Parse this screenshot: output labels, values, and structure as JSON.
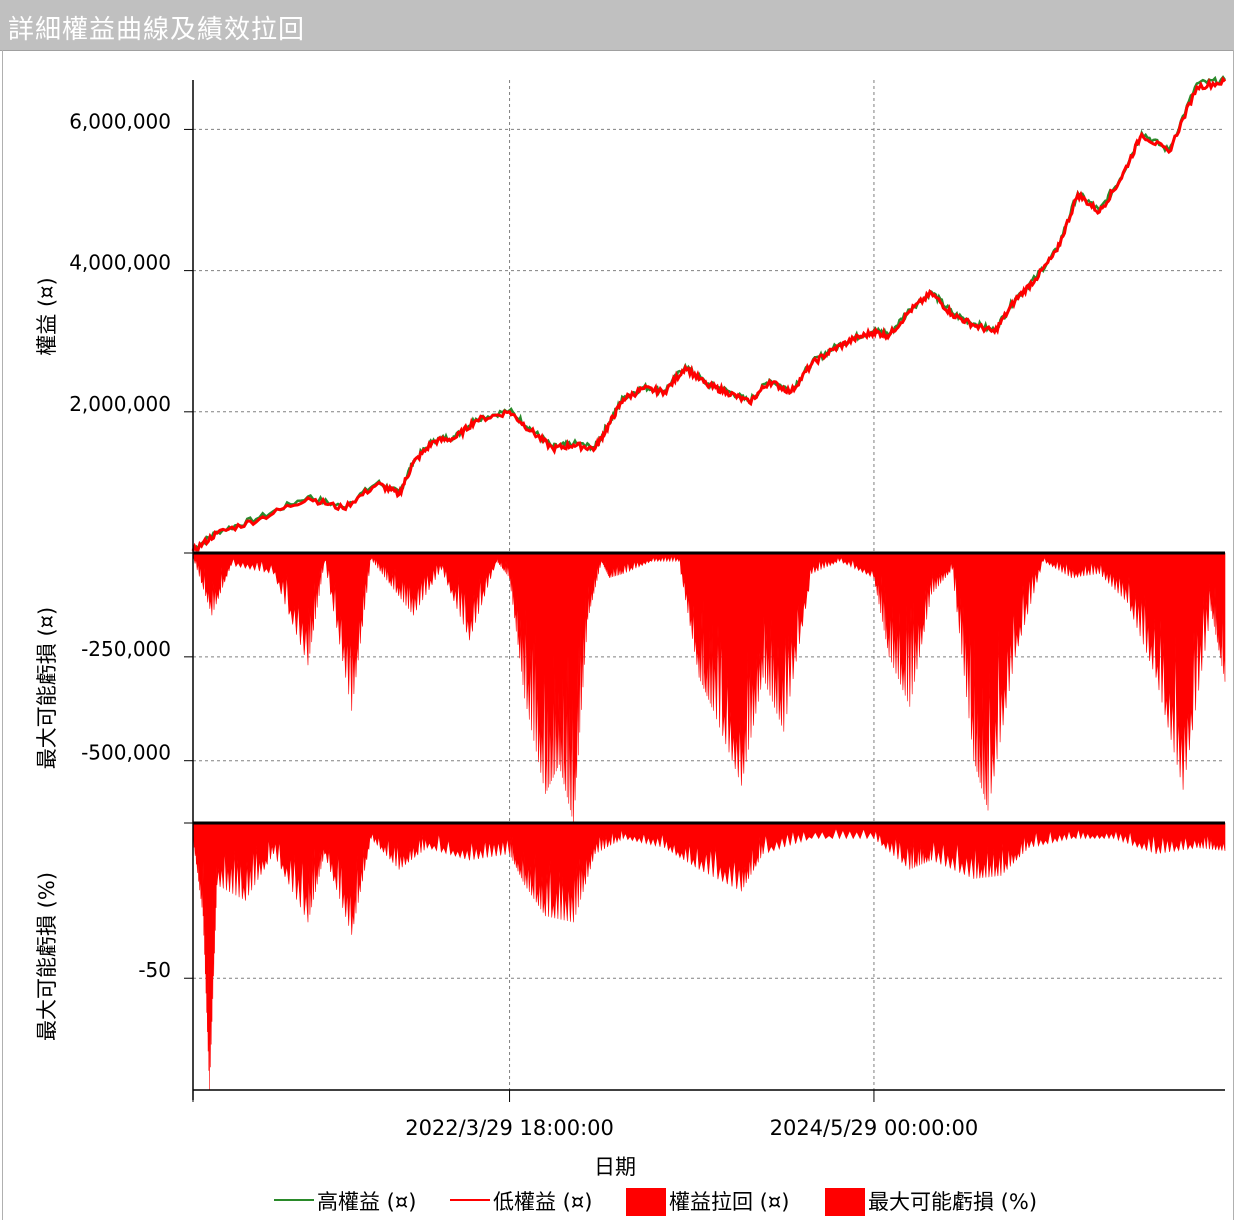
{
  "window": {
    "title": "詳細權益曲線及績效拉回"
  },
  "colors": {
    "high_line": "#2a8a2a",
    "low_line": "#ff0000",
    "fill": "#ff0000",
    "grid": "#808080",
    "title_bg": "#c0c0c0"
  },
  "chart_data": {
    "type": "line",
    "xlabel": "日期",
    "x_ticks": [
      "2022/3/29 18:00:00",
      "2024/5/29 00:00:00"
    ],
    "x_range": [
      "2020-05-10",
      "2026-07-01"
    ],
    "x_tick_dates": [
      "2022-03-29",
      "2024-05-29"
    ],
    "panels": [
      {
        "name": "equity",
        "ylabel": "權益 (¤)",
        "ylim": [
          0,
          6700000
        ],
        "y_ticks": [
          2000000,
          4000000,
          6000000
        ],
        "y_tick_labels": [
          "2,000,000",
          "4,000,000",
          "6,000,000"
        ],
        "series": [
          {
            "name": "高權益 (¤)",
            "style": "line",
            "color": "#2a8a2a"
          },
          {
            "name": "低權益 (¤)",
            "style": "line",
            "color": "#ff0000"
          }
        ],
        "x": [
          "2020-05-10",
          "2020-07-01",
          "2020-10-01",
          "2021-01-15",
          "2021-04-01",
          "2021-06-15",
          "2021-08-01",
          "2021-09-01",
          "2021-10-15",
          "2021-12-01",
          "2022-01-15",
          "2022-03-29",
          "2022-05-15",
          "2022-07-01",
          "2022-08-15",
          "2022-10-01",
          "2022-11-01",
          "2022-12-01",
          "2023-01-15",
          "2023-03-01",
          "2023-04-15",
          "2023-06-01",
          "2023-07-15",
          "2023-09-01",
          "2023-10-15",
          "2023-12-01",
          "2024-01-15",
          "2024-03-01",
          "2024-04-15",
          "2024-05-29",
          "2024-07-01",
          "2024-08-15",
          "2024-10-01",
          "2024-11-15",
          "2025-01-01",
          "2025-02-15",
          "2025-04-01",
          "2025-05-15",
          "2025-07-01",
          "2025-08-15",
          "2025-10-01",
          "2025-11-15",
          "2026-01-01",
          "2026-03-01",
          "2026-05-01",
          "2026-07-01"
        ],
        "high": [
          50000,
          300000,
          500000,
          800000,
          650000,
          1000000,
          850000,
          1300000,
          1600000,
          1650000,
          1900000,
          2020000,
          1750000,
          1500000,
          1550000,
          1500000,
          1850000,
          2200000,
          2350000,
          2300000,
          2650000,
          2400000,
          2300000,
          2150000,
          2450000,
          2300000,
          2700000,
          2900000,
          3050000,
          3150000,
          3100000,
          3450000,
          3700000,
          3400000,
          3250000,
          3150000,
          3600000,
          3900000,
          4300000,
          5100000,
          4850000,
          5300000,
          5950000,
          5700000,
          6650000,
          6700000
        ],
        "low": [
          30000,
          280000,
          480000,
          780000,
          630000,
          980000,
          830000,
          1280000,
          1580000,
          1630000,
          1880000,
          2000000,
          1730000,
          1480000,
          1530000,
          1480000,
          1830000,
          2180000,
          2330000,
          2280000,
          2630000,
          2380000,
          2280000,
          2130000,
          2430000,
          2280000,
          2680000,
          2880000,
          3030000,
          3130000,
          3080000,
          3430000,
          3680000,
          3380000,
          3230000,
          3130000,
          3580000,
          3880000,
          4280000,
          5080000,
          4830000,
          5280000,
          5930000,
          5680000,
          6600000,
          6680000
        ]
      },
      {
        "name": "drawdown",
        "ylabel": "最大可能虧損 (¤)",
        "ylim": [
          -650000,
          0
        ],
        "y_ticks": [
          -250000,
          -500000
        ],
        "y_tick_labels": [
          "-250,000",
          "-500,000"
        ],
        "series": [
          {
            "name": "權益拉回 (¤)",
            "style": "area",
            "color": "#ff0000"
          }
        ],
        "x": [
          "2020-05-10",
          "2020-06-20",
          "2020-08-01",
          "2020-11-01",
          "2021-01-15",
          "2021-02-20",
          "2021-04-20",
          "2021-06-01",
          "2021-07-15",
          "2021-09-01",
          "2021-11-01",
          "2022-01-01",
          "2022-03-01",
          "2022-03-29",
          "2022-05-01",
          "2022-06-15",
          "2022-07-15",
          "2022-08-15",
          "2022-09-15",
          "2022-10-15",
          "2022-11-01",
          "2022-12-01",
          "2023-02-01",
          "2023-04-01",
          "2023-05-15",
          "2023-06-15",
          "2023-08-15",
          "2023-10-01",
          "2023-11-15",
          "2024-01-15",
          "2024-03-15",
          "2024-05-29",
          "2024-07-01",
          "2024-08-15",
          "2024-10-01",
          "2024-11-15",
          "2025-01-01",
          "2025-02-01",
          "2025-04-01",
          "2025-06-01",
          "2025-08-01",
          "2025-10-01",
          "2025-12-01",
          "2026-02-01",
          "2026-04-01",
          "2026-06-01",
          "2026-07-01"
        ],
        "values": [
          -10000,
          -150000,
          -30000,
          -50000,
          -270000,
          -20000,
          -380000,
          -15000,
          -80000,
          -150000,
          -40000,
          -210000,
          -20000,
          -60000,
          -350000,
          -580000,
          -510000,
          -650000,
          -160000,
          -20000,
          -60000,
          -50000,
          -20000,
          -20000,
          -300000,
          -380000,
          -560000,
          -300000,
          -430000,
          -50000,
          -20000,
          -60000,
          -250000,
          -370000,
          -100000,
          -40000,
          -500000,
          -620000,
          -250000,
          -20000,
          -60000,
          -50000,
          -120000,
          -300000,
          -570000,
          -140000,
          -310000
        ]
      },
      {
        "name": "drawdown_pct",
        "ylabel": "最大可能虧損 (%)",
        "ylim": [
          -86,
          0
        ],
        "y_ticks": [
          -50
        ],
        "y_tick_labels": [
          "-50"
        ],
        "series": [
          {
            "name": "最大可能虧損 (%)",
            "style": "area",
            "color": "#ff0000"
          }
        ],
        "x": [
          "2020-05-10",
          "2020-06-01",
          "2020-06-15",
          "2020-07-01",
          "2020-09-01",
          "2020-11-01",
          "2021-01-15",
          "2021-02-20",
          "2021-04-20",
          "2021-06-01",
          "2021-08-01",
          "2021-10-01",
          "2022-01-01",
          "2022-03-29",
          "2022-05-01",
          "2022-06-15",
          "2022-08-15",
          "2022-10-01",
          "2022-12-01",
          "2023-03-01",
          "2023-05-15",
          "2023-08-15",
          "2023-10-01",
          "2024-01-15",
          "2024-05-29",
          "2024-08-15",
          "2024-10-01",
          "2025-01-01",
          "2025-03-01",
          "2025-05-01",
          "2025-08-01",
          "2025-11-01",
          "2026-02-01",
          "2026-05-01",
          "2026-07-01"
        ],
        "values": [
          -5,
          -30,
          -86,
          -20,
          -25,
          -10,
          -32,
          -10,
          -36,
          -5,
          -15,
          -8,
          -12,
          -10,
          -20,
          -30,
          -32,
          -10,
          -5,
          -8,
          -15,
          -22,
          -10,
          -5,
          -5,
          -15,
          -12,
          -18,
          -17,
          -8,
          -5,
          -5,
          -10,
          -8,
          -9
        ]
      }
    ],
    "legend": {
      "placement": "bottom",
      "items": [
        {
          "label": "高權益 (¤)",
          "style": "line",
          "color": "#2a8a2a"
        },
        {
          "label": "低權益 (¤)",
          "style": "line",
          "color": "#ff0000"
        },
        {
          "label": "權益拉回 (¤)",
          "style": "box",
          "color": "#ff0000"
        },
        {
          "label": "最大可能虧損 (%)",
          "style": "box",
          "color": "#ff0000"
        }
      ]
    },
    "grid": true
  }
}
